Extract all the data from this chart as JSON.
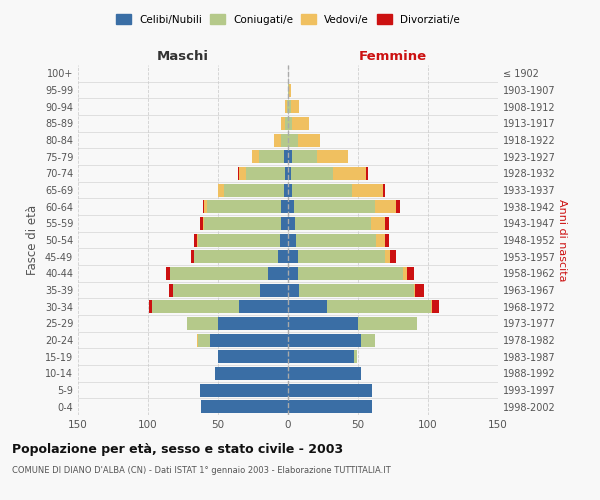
{
  "age_groups": [
    "0-4",
    "5-9",
    "10-14",
    "15-19",
    "20-24",
    "25-29",
    "30-34",
    "35-39",
    "40-44",
    "45-49",
    "50-54",
    "55-59",
    "60-64",
    "65-69",
    "70-74",
    "75-79",
    "80-84",
    "85-89",
    "90-94",
    "95-99",
    "100+"
  ],
  "birth_years": [
    "1998-2002",
    "1993-1997",
    "1988-1992",
    "1983-1987",
    "1978-1982",
    "1973-1977",
    "1968-1972",
    "1963-1967",
    "1958-1962",
    "1953-1957",
    "1948-1952",
    "1943-1947",
    "1938-1942",
    "1933-1937",
    "1928-1932",
    "1923-1927",
    "1918-1922",
    "1913-1917",
    "1908-1912",
    "1903-1907",
    "≤ 1902"
  ],
  "maschi": {
    "celibi": [
      62,
      63,
      52,
      50,
      56,
      50,
      35,
      20,
      14,
      7,
      6,
      5,
      5,
      3,
      2,
      3,
      0,
      0,
      0,
      0,
      0
    ],
    "coniugati": [
      0,
      0,
      0,
      0,
      8,
      22,
      62,
      62,
      70,
      60,
      58,
      55,
      53,
      43,
      28,
      18,
      5,
      2,
      1,
      0,
      0
    ],
    "vedovi": [
      0,
      0,
      0,
      0,
      1,
      0,
      0,
      0,
      0,
      0,
      1,
      1,
      2,
      4,
      5,
      5,
      5,
      3,
      1,
      0,
      0
    ],
    "divorziati": [
      0,
      0,
      0,
      0,
      0,
      0,
      2,
      3,
      3,
      2,
      2,
      2,
      1,
      0,
      1,
      0,
      0,
      0,
      0,
      0,
      0
    ]
  },
  "femmine": {
    "nubili": [
      60,
      60,
      52,
      47,
      52,
      50,
      28,
      8,
      7,
      7,
      6,
      5,
      4,
      3,
      2,
      3,
      0,
      0,
      0,
      0,
      0
    ],
    "coniugate": [
      0,
      0,
      0,
      2,
      10,
      42,
      74,
      82,
      75,
      62,
      57,
      54,
      58,
      43,
      30,
      18,
      7,
      3,
      2,
      1,
      0
    ],
    "vedove": [
      0,
      0,
      0,
      0,
      0,
      0,
      1,
      1,
      3,
      4,
      6,
      10,
      15,
      22,
      24,
      22,
      16,
      12,
      6,
      1,
      0
    ],
    "divorziate": [
      0,
      0,
      0,
      0,
      0,
      0,
      5,
      6,
      5,
      4,
      3,
      3,
      3,
      1,
      1,
      0,
      0,
      0,
      0,
      0,
      0
    ]
  },
  "colors": {
    "celibi": "#3a6ea5",
    "coniugati": "#b5c98a",
    "vedovi": "#f0c060",
    "divorziati": "#cc1111"
  },
  "xlim": 150,
  "title": "Popolazione per età, sesso e stato civile - 2003",
  "subtitle": "COMUNE DI DIANO D'ALBA (CN) - Dati ISTAT 1° gennaio 2003 - Elaborazione TUTTITALIA.IT",
  "ylabel_left": "Fasce di età",
  "ylabel_right": "Anni di nascita",
  "xlabel_maschi": "Maschi",
  "xlabel_femmine": "Femmine",
  "bg_color": "#f8f8f8",
  "grid_color": "#cccccc"
}
